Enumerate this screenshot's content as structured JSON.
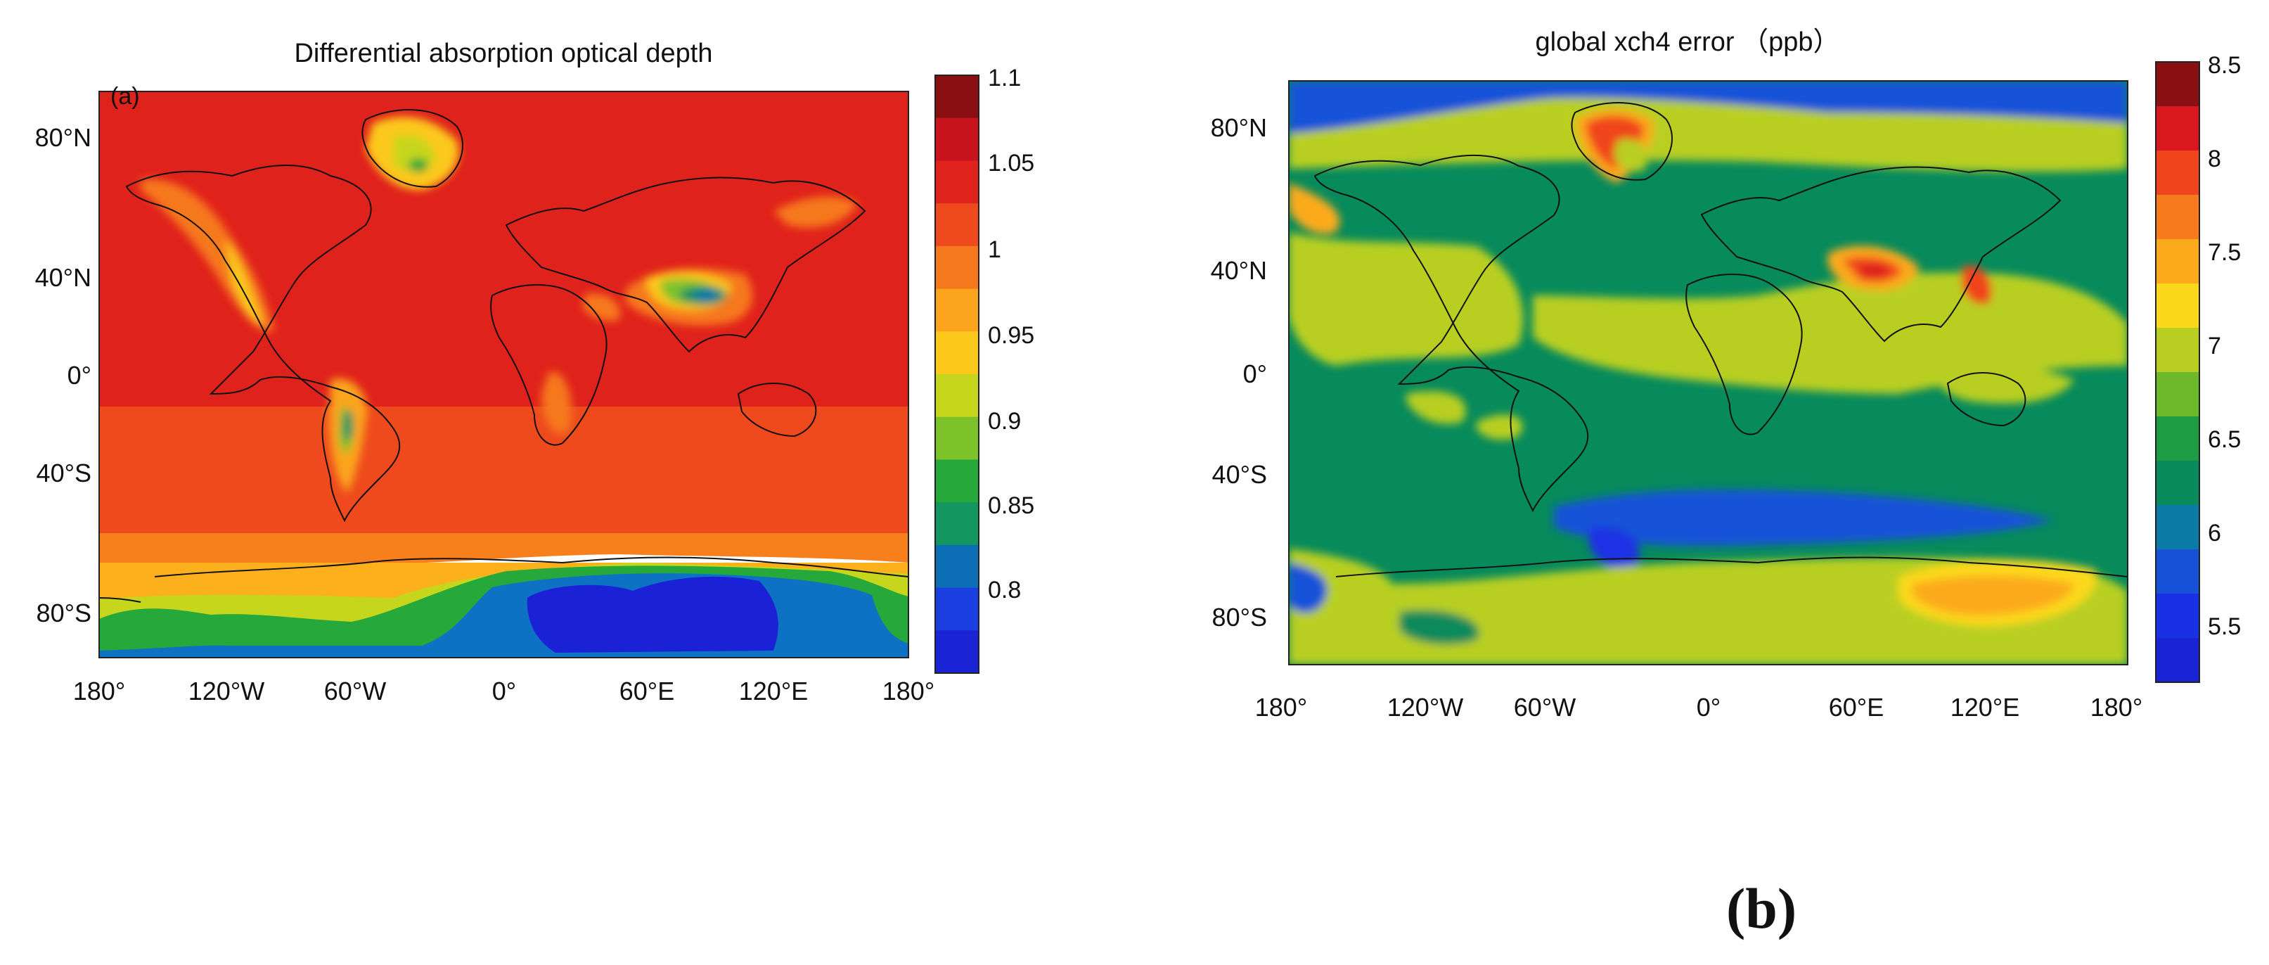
{
  "figure": {
    "bottom_label": "(b)"
  },
  "panels": [
    {
      "id": "a",
      "title": "Differential absorption optical depth",
      "inset_label": "(a)",
      "x_ticks": [
        "180°",
        "120°W",
        "60°W",
        "0°",
        "60°E",
        "120°E",
        "180°"
      ],
      "y_ticks": [
        "80°N",
        "40°N",
        "0°",
        "40°S",
        "80°S"
      ],
      "colorbar": {
        "ticks": [
          "1.1",
          "1.05",
          "1",
          "0.95",
          "0.9",
          "0.85",
          "0.8"
        ],
        "colors": [
          "#8a0f13",
          "#c8141c",
          "#e0221c",
          "#ee4a1e",
          "#f6781c",
          "#fba41c",
          "#fcc81a",
          "#c6d61c",
          "#7ec22a",
          "#26a83a",
          "#139660",
          "#0c6fb5",
          "#1a3ee0",
          "#1b24d4"
        ]
      }
    },
    {
      "id": "b",
      "title": "global xch4 error （ppb）",
      "x_ticks": [
        "180°",
        "120°W",
        "60°W",
        "0°",
        "60°E",
        "120°E",
        "180°"
      ],
      "y_ticks": [
        "80°N",
        "40°N",
        "0°",
        "40°S",
        "80°S"
      ],
      "colorbar": {
        "ticks": [
          "8.5",
          "8",
          "7.5",
          "7",
          "6.5",
          "6",
          "5.5"
        ],
        "colors": [
          "#8a0f13",
          "#d8181e",
          "#f0441c",
          "#f77a1c",
          "#fbaa1c",
          "#fcd81a",
          "#b8cf22",
          "#6eb82c",
          "#1e9c44",
          "#078a5c",
          "#0c7aa6",
          "#1652d8",
          "#1a30e4",
          "#1b24d4"
        ]
      }
    }
  ],
  "chart_data": [
    {
      "type": "heatmap",
      "title": "Differential absorption optical depth",
      "x_ticks": [
        "180°",
        "120°W",
        "60°W",
        "0°",
        "60°E",
        "120°E",
        "180°"
      ],
      "y_ticks": [
        "80°N",
        "40°N",
        "0°",
        "40°S",
        "80°S"
      ],
      "colorbar_range": [
        0.76,
        1.1
      ],
      "colorbar_ticks": [
        1.1,
        1.05,
        1,
        0.95,
        0.9,
        0.85,
        0.8
      ]
    },
    {
      "type": "heatmap",
      "title": "global xch4 error （ppb）",
      "x_ticks": [
        "180°",
        "120°W",
        "60°W",
        "0°",
        "60°E",
        "120°E",
        "180°"
      ],
      "y_ticks": [
        "80°N",
        "40°N",
        "0°",
        "40°S",
        "80°S"
      ],
      "colorbar_range": [
        5.2,
        8.5
      ],
      "colorbar_ticks": [
        8.5,
        8,
        7.5,
        7,
        6.5,
        6,
        5.5
      ]
    }
  ]
}
